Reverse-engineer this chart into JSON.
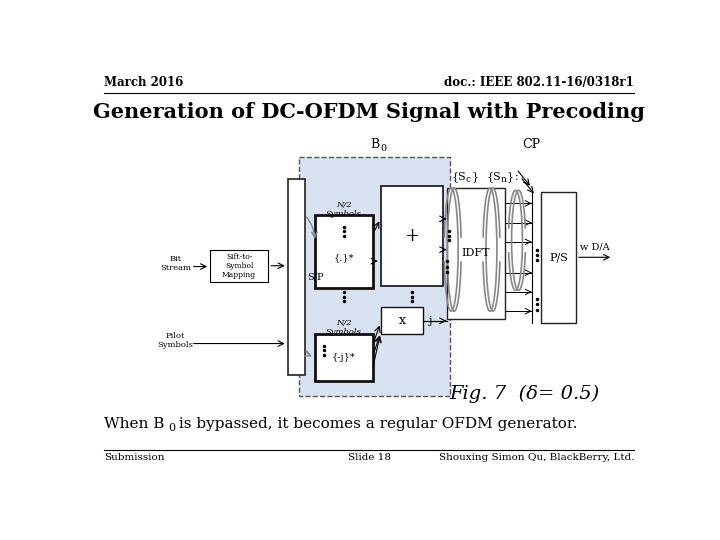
{
  "header_left": "March 2016",
  "header_right": "doc.: IEEE 802.11-16/0318r1",
  "title": "Generation of DC-OFDM Signal with Precoding",
  "footer_left": "Submission",
  "footer_center": "Slide 18",
  "footer_right": "Shouxing Simon Qu, BlackBerry, Ltd.",
  "fig_caption": "Fig. 7  (δ= 0.5)",
  "bg_color": "#ffffff",
  "text_color": "#000000",
  "box_color": "#000000",
  "box_fill": "#ffffff",
  "highlight_fill": "#d9e2f0",
  "line_color": "#000000",
  "gray_color": "#888888"
}
